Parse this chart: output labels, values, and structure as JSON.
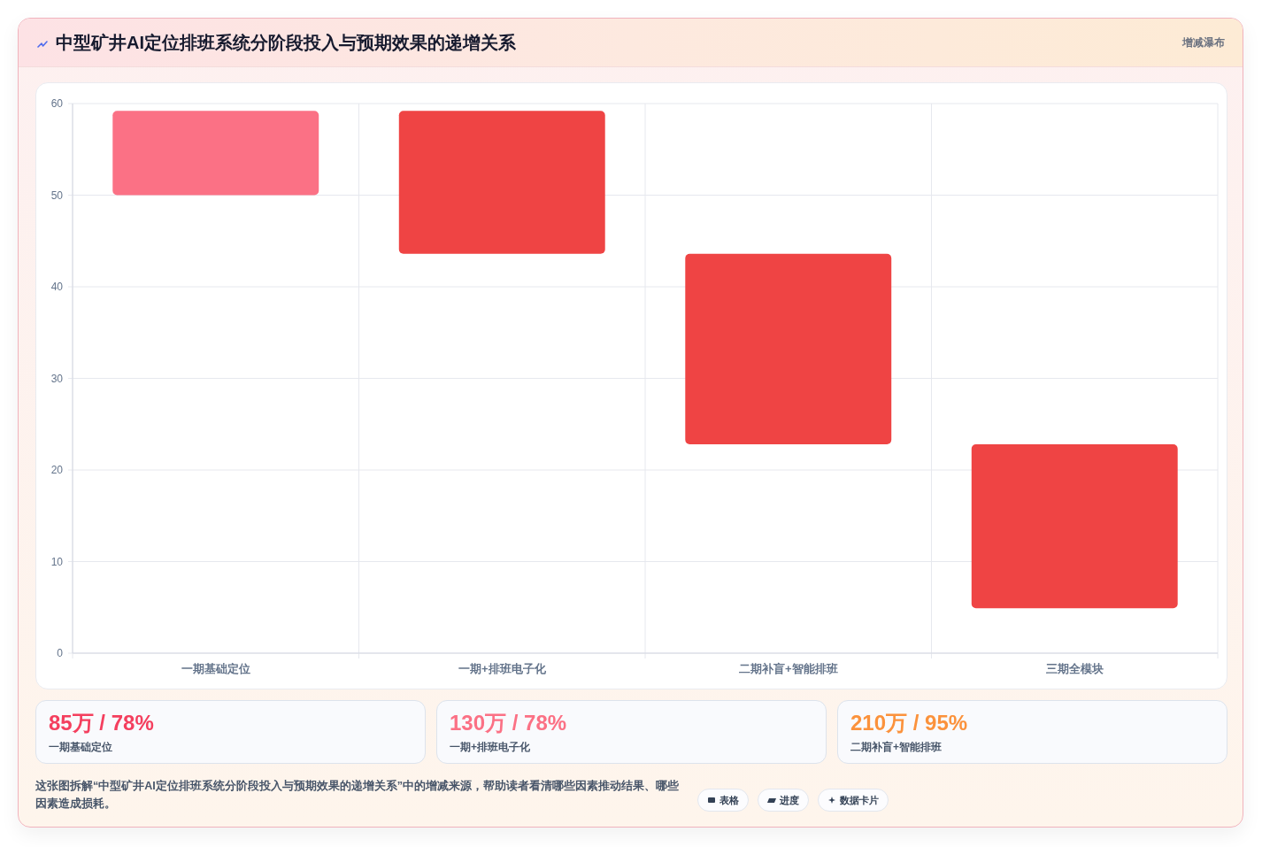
{
  "chart_data": [
    {
      "type": "bar",
      "title": "中型矿井AI定位排班系统分阶段投入与预期效果的递增关系",
      "subtitle": "增减瀑布",
      "categories": [
        "一期基础定位",
        "一期+排班电子化",
        "二期补盲+智能排班",
        "三期全模块"
      ],
      "values": [
        9.2,
        -15.6,
        -20.8,
        -17.9
      ],
      "base": [
        50,
        59.2,
        43.6,
        22.8
      ],
      "colors": [
        "#fb7185",
        "#ef4444",
        "#ef4444",
        "#ef4444"
      ],
      "ylim": [
        0,
        60
      ],
      "yticks": [
        0,
        10,
        20,
        30,
        40,
        50,
        60
      ],
      "grid": true
    },
    {
      "type": "other",
      "categories": [
        "一期基础定位",
        "一期+排班电子化",
        "二期补盲+智能排班"
      ],
      "value_labels": [
        "85万 / 78%",
        "130万 / 78%",
        "210万 / 95%"
      ],
      "annotations": [
        "这张图拆解“中型矿井AI定位排班系统分阶段投入与预期效果的递增关系”中的增减来源，帮助读者看清哪些因素推动结果、哪些因素造成损耗。",
        "表格",
        "进度",
        "数据卡片"
      ]
    }
  ]
}
